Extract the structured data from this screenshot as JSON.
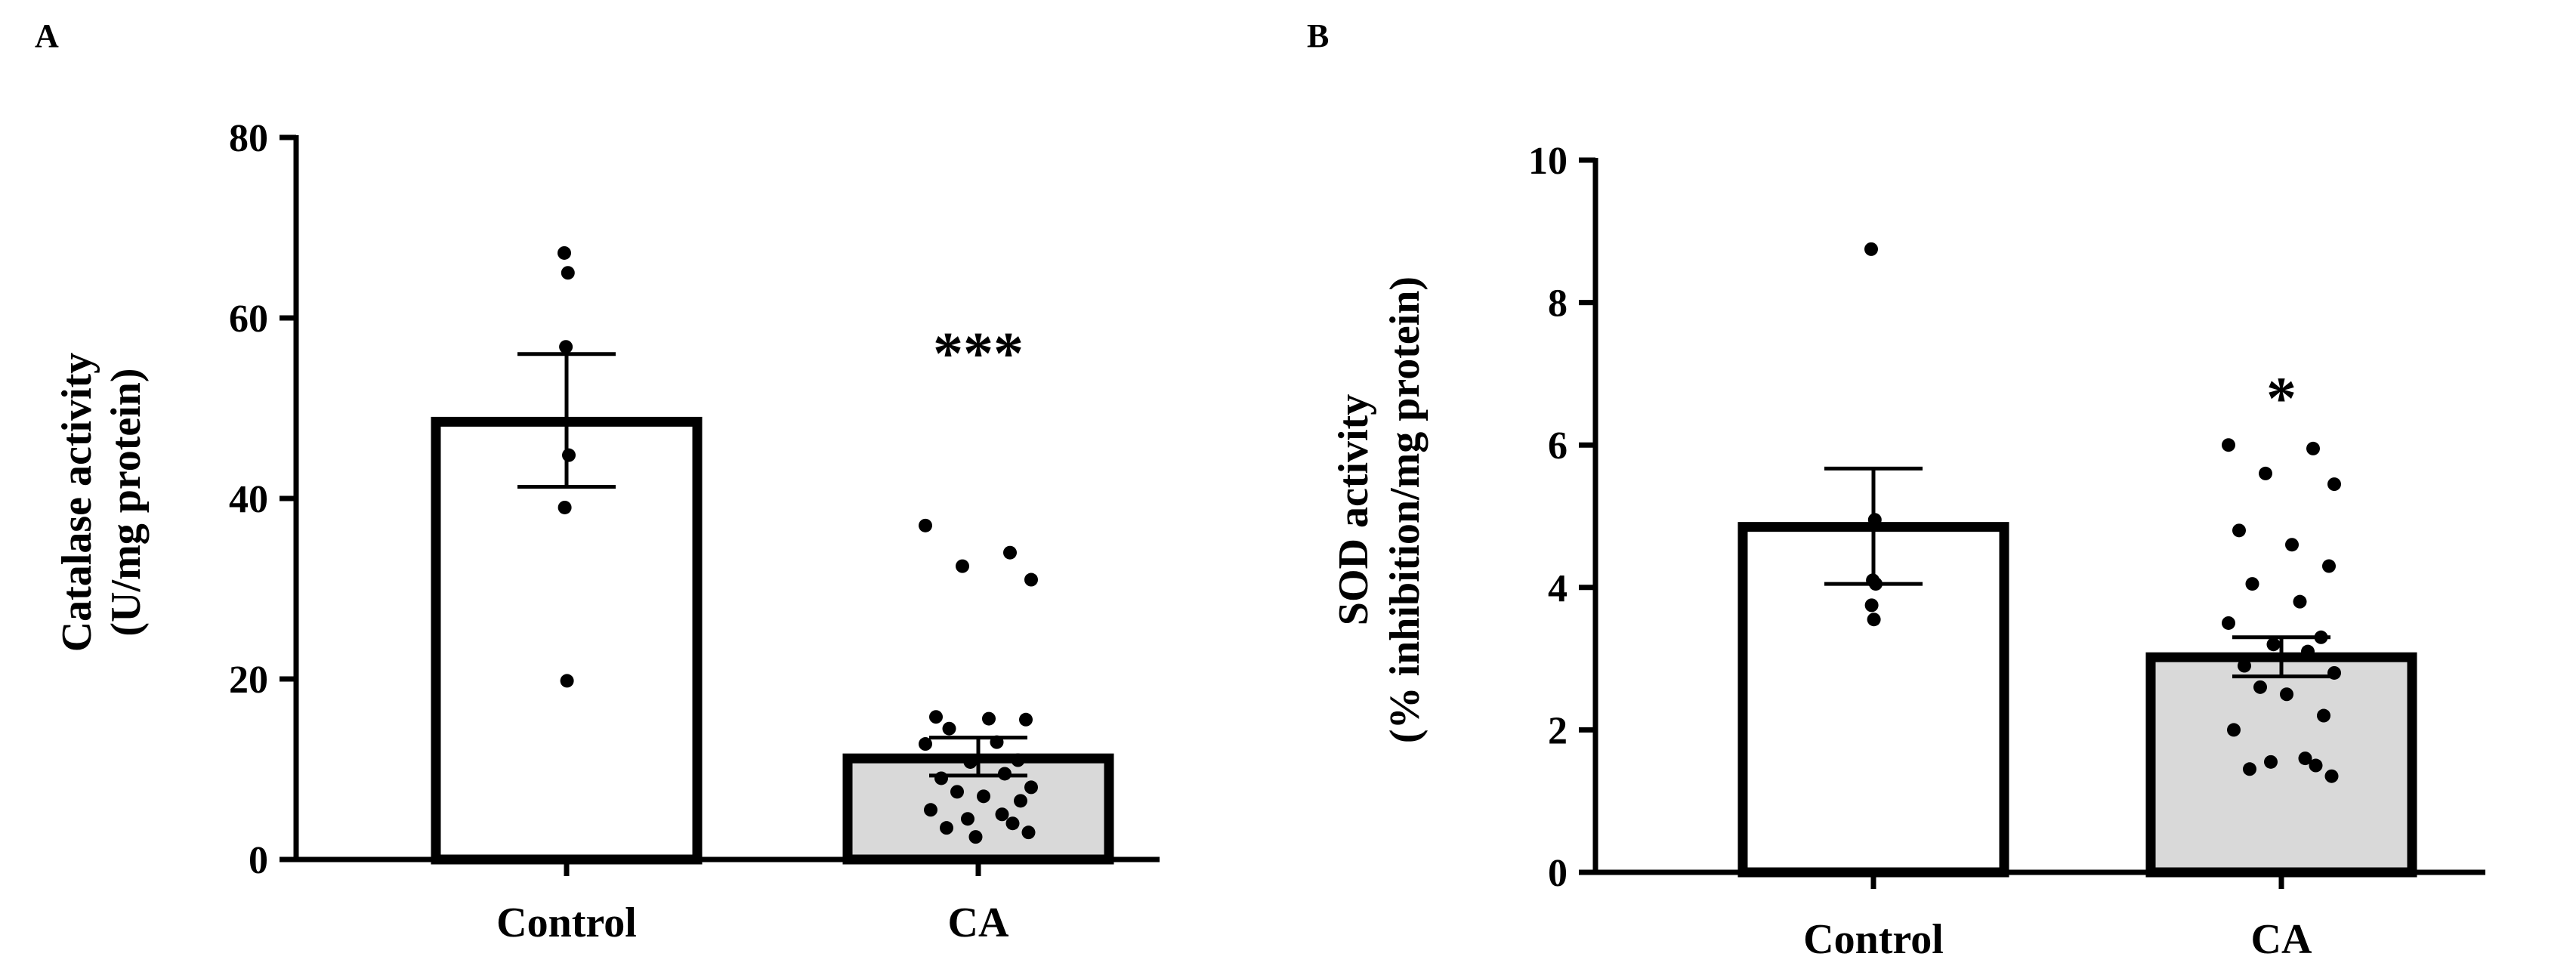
{
  "chart_data": [
    {
      "panel": "A",
      "type": "bar",
      "ylabel_lines": [
        "Catalase activity",
        "(U/mg protein)"
      ],
      "ylim": [
        0,
        80
      ],
      "yticks": [
        "0",
        "20",
        "40",
        "60",
        "80"
      ],
      "categories": [
        "Control",
        "CA"
      ],
      "means": [
        48.5,
        11.2
      ],
      "sem_low": [
        41.3,
        9.3
      ],
      "sem_high": [
        56.0,
        13.5
      ],
      "bar_colors": [
        "#ffffff",
        "#d9d9d9"
      ],
      "significance": [
        "",
        "***"
      ],
      "points": [
        [
          67.2,
          65.0,
          56.8,
          44.8,
          39.0,
          19.8
        ],
        [
          37.0,
          34.0,
          32.5,
          31.0,
          15.8,
          15.6,
          15.5,
          14.5,
          13.0,
          12.8,
          11.0,
          10.8,
          9.5,
          9.0,
          8.0,
          7.5,
          7.0,
          6.5,
          5.5,
          5.0,
          4.5,
          4.0,
          3.5,
          3.0,
          2.5
        ]
      ]
    },
    {
      "panel": "B",
      "type": "bar",
      "ylabel_lines": [
        "SOD activity",
        "(% inhibition/mg protein)"
      ],
      "ylim": [
        0,
        10
      ],
      "yticks": [
        "0",
        "2",
        "4",
        "6",
        "8",
        "10"
      ],
      "categories": [
        "Control",
        "CA"
      ],
      "means": [
        4.85,
        3.02
      ],
      "sem_low": [
        4.05,
        2.75
      ],
      "sem_high": [
        5.67,
        3.3
      ],
      "bar_colors": [
        "#ffffff",
        "#d9d9d9"
      ],
      "significance": [
        "",
        "*"
      ],
      "points": [
        [
          8.75,
          4.95,
          4.1,
          4.05,
          3.75,
          3.55
        ],
        [
          6.0,
          5.95,
          5.6,
          5.45,
          4.8,
          4.6,
          4.3,
          4.05,
          3.8,
          3.5,
          3.3,
          3.2,
          3.1,
          2.9,
          2.8,
          2.6,
          2.5,
          2.2,
          2.0,
          1.6,
          1.55,
          1.5,
          1.45,
          1.35
        ]
      ]
    }
  ]
}
